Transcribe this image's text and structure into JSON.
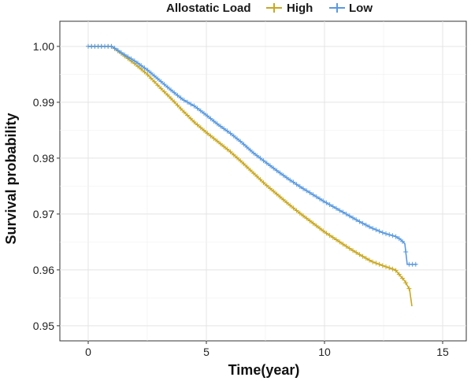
{
  "chart_data": {
    "type": "line",
    "subtype": "kaplan-meier",
    "title": "",
    "xlabel": "Time(year)",
    "ylabel": "Survival probability",
    "xlim": [
      -1.2,
      16
    ],
    "ylim": [
      0.9473,
      1.0045
    ],
    "x_ticks": [
      0,
      5,
      10,
      15
    ],
    "x_tick_labels": [
      "0",
      "5",
      "10",
      "15"
    ],
    "y_ticks": [
      0.95,
      0.96,
      0.97,
      0.98,
      0.99,
      1.0
    ],
    "y_tick_labels": [
      "0.95",
      "0.96",
      "0.97",
      "0.98",
      "0.99",
      "1.00"
    ],
    "grid": true,
    "legend": {
      "title": "Allostatic Load",
      "position": "top",
      "entries": [
        "High",
        "Low"
      ]
    },
    "series": [
      {
        "name": "High",
        "color": "#c9a820",
        "x": [
          0,
          1.0,
          1.5,
          2.0,
          2.5,
          3.0,
          3.5,
          4.0,
          4.5,
          5.0,
          5.5,
          6.0,
          6.5,
          7.0,
          7.5,
          8.0,
          8.5,
          9.0,
          9.5,
          10.0,
          10.5,
          11.0,
          11.5,
          12.0,
          12.5,
          13.0,
          13.2,
          13.4,
          13.6,
          13.7
        ],
        "y": [
          1.0,
          1.0,
          0.9984,
          0.9968,
          0.995,
          0.9928,
          0.9907,
          0.9885,
          0.9864,
          0.9846,
          0.9829,
          0.9812,
          0.9793,
          0.9773,
          0.9753,
          0.9735,
          0.9717,
          0.97,
          0.9684,
          0.9668,
          0.9654,
          0.964,
          0.9627,
          0.9615,
          0.9607,
          0.96,
          0.959,
          0.958,
          0.9565,
          0.9535
        ]
      },
      {
        "name": "Low",
        "color": "#5a9ae0",
        "x": [
          0,
          1.0,
          1.5,
          2.0,
          2.5,
          3.0,
          3.5,
          4.0,
          4.5,
          5.0,
          5.5,
          6.0,
          6.5,
          7.0,
          7.5,
          8.0,
          8.5,
          9.0,
          9.5,
          10.0,
          10.5,
          11.0,
          11.5,
          12.0,
          12.5,
          13.0,
          13.2,
          13.4,
          13.5,
          13.9
        ],
        "y": [
          1.0,
          1.0,
          0.9986,
          0.9973,
          0.9958,
          0.994,
          0.9922,
          0.9905,
          0.9893,
          0.9877,
          0.986,
          0.9845,
          0.9828,
          0.9809,
          0.9793,
          0.9777,
          0.9762,
          0.9748,
          0.9735,
          0.9722,
          0.971,
          0.9698,
          0.9686,
          0.9675,
          0.9666,
          0.966,
          0.9655,
          0.9647,
          0.961,
          0.961
        ]
      }
    ]
  }
}
